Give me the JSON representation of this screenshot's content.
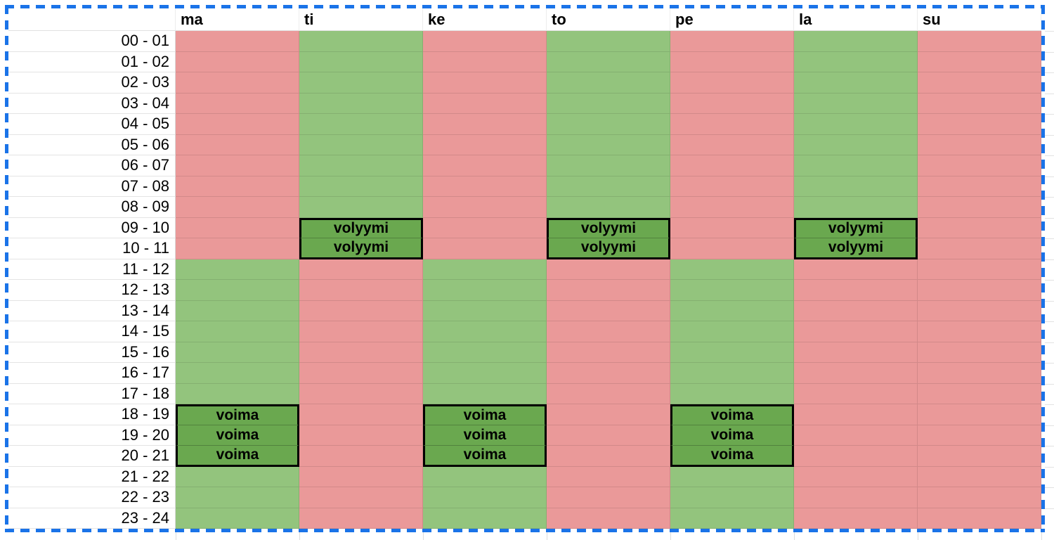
{
  "sheet": {
    "colors": {
      "unavailable": "#ea9999",
      "available": "#93c47d",
      "session": "#6aa84f",
      "session_border": "#000000",
      "selection_border": "#1a73e8"
    },
    "day_headers": [
      "ma",
      "ti",
      "ke",
      "to",
      "pe",
      "la",
      "su"
    ],
    "hour_labels": [
      "00 - 01",
      "01 - 02",
      "02 - 03",
      "03 - 04",
      "04 - 05",
      "05 - 06",
      "06 - 07",
      "07 - 08",
      "08 - 09",
      "09 - 10",
      "10 - 11",
      "11 - 12",
      "12 - 13",
      "13 - 14",
      "14 - 15",
      "15 - 16",
      "16 - 17",
      "17 - 18",
      "18 - 19",
      "19 - 20",
      "20 - 21",
      "21 - 22",
      "22 - 23",
      "23 - 24"
    ],
    "columns": [
      {
        "day": "ma",
        "available_hours": {
          "from": 11,
          "to": 24
        },
        "session": {
          "label": "voima",
          "from": 18,
          "to": 21
        }
      },
      {
        "day": "ti",
        "available_hours": {
          "from": 0,
          "to": 11
        },
        "session": {
          "label": "volyymi",
          "from": 9,
          "to": 11
        }
      },
      {
        "day": "ke",
        "available_hours": {
          "from": 11,
          "to": 24
        },
        "session": {
          "label": "voima",
          "from": 18,
          "to": 21
        }
      },
      {
        "day": "to",
        "available_hours": {
          "from": 0,
          "to": 11
        },
        "session": {
          "label": "volyymi",
          "from": 9,
          "to": 11
        }
      },
      {
        "day": "pe",
        "available_hours": {
          "from": 11,
          "to": 24
        },
        "session": {
          "label": "voima",
          "from": 18,
          "to": 21
        }
      },
      {
        "day": "la",
        "available_hours": {
          "from": 0,
          "to": 11
        },
        "session": {
          "label": "volyymi",
          "from": 9,
          "to": 11
        }
      },
      {
        "day": "su",
        "available_hours": null,
        "session": null
      }
    ]
  }
}
